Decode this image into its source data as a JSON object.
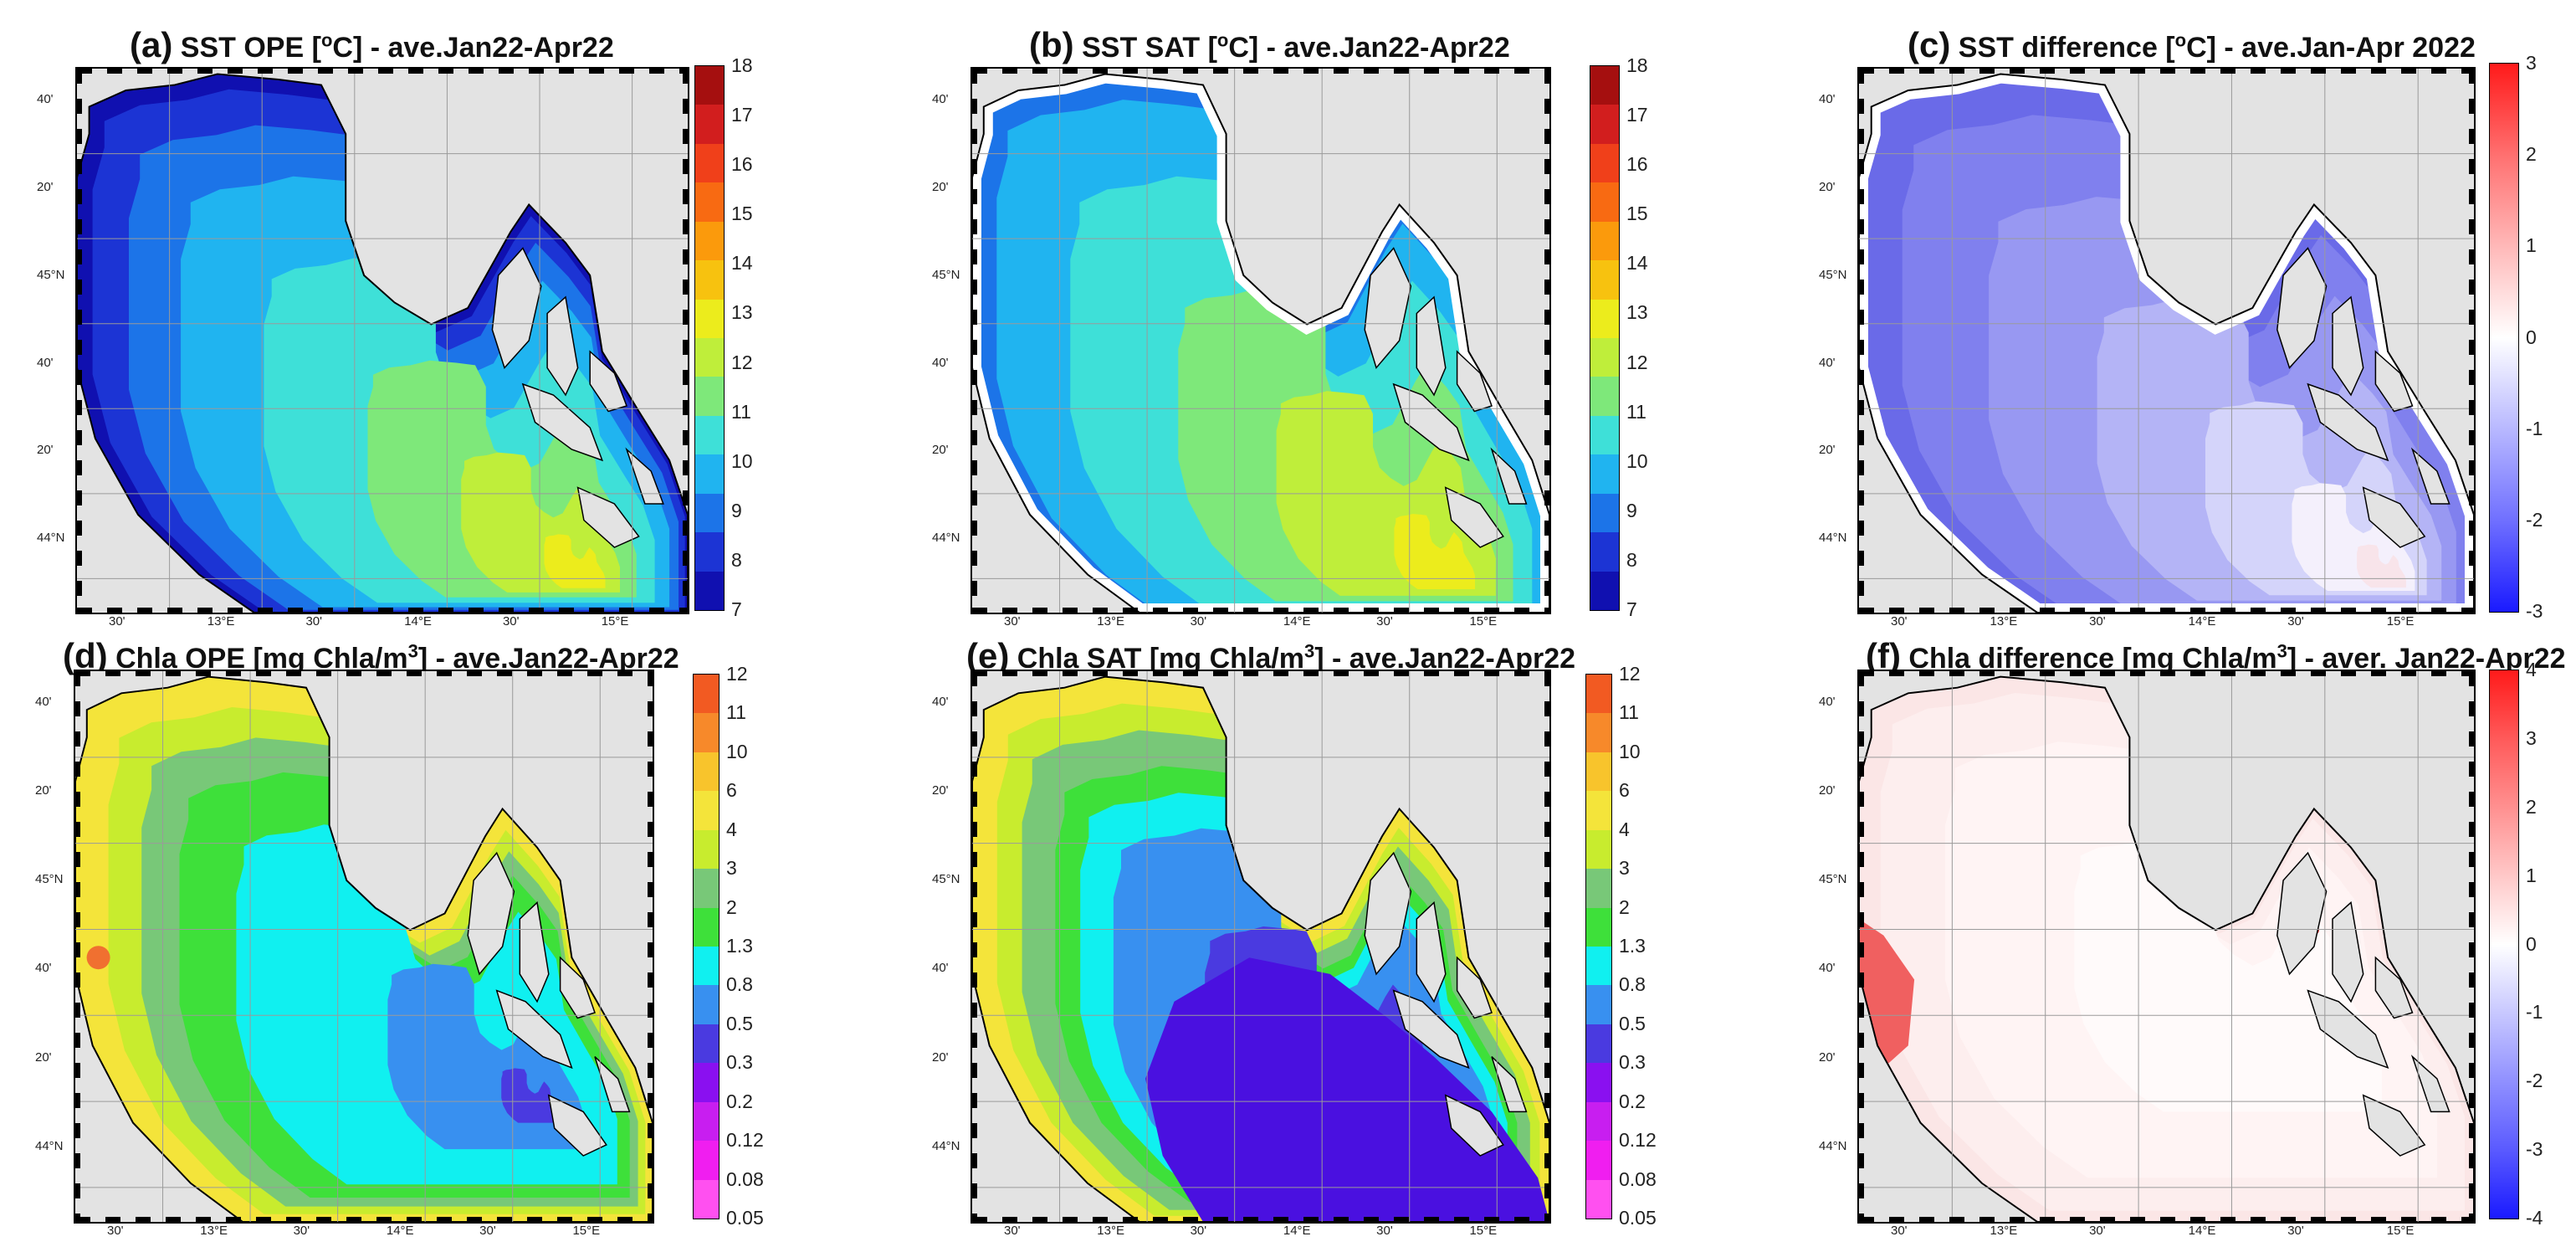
{
  "panels": [
    {
      "id": "a",
      "letter": "(a)",
      "title_pre": "SST OPE [",
      "title_sup": "o",
      "title_post": "C] - ave.Jan22-Apr22",
      "kind": "sst",
      "colorbar": {
        "labels": [
          "18",
          "17",
          "16",
          "15",
          "14",
          "13",
          "12",
          "11",
          "10",
          "9",
          "8",
          "7"
        ],
        "colors": [
          "#a50f0f",
          "#d21e1e",
          "#f0401a",
          "#f86a12",
          "#fb9a0c",
          "#f7c20f",
          "#ecec1c",
          "#bfee3a",
          "#7ee87a",
          "#3ee0d8",
          "#20b4f0",
          "#1c74e8",
          "#1c34d4",
          "#1010b0"
        ]
      }
    },
    {
      "id": "b",
      "letter": "(b)",
      "title_pre": "SST SAT [",
      "title_sup": "o",
      "title_post": "C] - ave.Jan22-Apr22",
      "kind": "sst-sat",
      "colorbar": {
        "labels": [
          "18",
          "17",
          "16",
          "15",
          "14",
          "13",
          "12",
          "11",
          "10",
          "9",
          "8",
          "7"
        ],
        "colors": [
          "#a50f0f",
          "#d21e1e",
          "#f0401a",
          "#f86a12",
          "#fb9a0c",
          "#f7c20f",
          "#ecec1c",
          "#bfee3a",
          "#7ee87a",
          "#3ee0d8",
          "#20b4f0",
          "#1c74e8",
          "#1c34d4",
          "#1010b0"
        ]
      }
    },
    {
      "id": "c",
      "letter": "(c)",
      "title_pre": "SST difference [",
      "title_sup": "o",
      "title_post": "C] - ave.Jan-Apr 2022",
      "kind": "sstdiff",
      "colorbar": {
        "labels": [
          "3",
          "2",
          "1",
          "0",
          "-1",
          "-2",
          "-3"
        ],
        "colors": [
          "#ff1a1a",
          "#ff7070",
          "#ffb8b8",
          "#ffffff",
          "#b8b8ff",
          "#7070ff",
          "#1a1aff"
        ]
      }
    },
    {
      "id": "d",
      "letter": "(d)",
      "title_pre": "Chla OPE [mg Chla/m",
      "title_sup": "3",
      "title_post": "] - ave.Jan22-Apr22",
      "kind": "chla",
      "colorbar": {
        "labels": [
          "12",
          "11",
          "10",
          "6",
          "4",
          "3",
          "2",
          "1.3",
          "0.8",
          "0.5",
          "0.3",
          "0.2",
          "0.12",
          "0.08",
          "0.05"
        ],
        "colors": [
          "#f25a22",
          "#f7892a",
          "#f8c42c",
          "#f4e43a",
          "#c8ec2e",
          "#78c878",
          "#3ee03a",
          "#10f0f0",
          "#3890f0",
          "#4a3ae0",
          "#8a10f0",
          "#c81ef0",
          "#f01ef0",
          "#ff50f0"
        ]
      }
    },
    {
      "id": "e",
      "letter": "(e)",
      "title_pre": "Chla SAT [mg Chla/m",
      "title_sup": "3",
      "title_post": "] - ave.Jan22-Apr22",
      "kind": "chla-sat",
      "colorbar": {
        "labels": [
          "12",
          "11",
          "10",
          "6",
          "4",
          "3",
          "2",
          "1.3",
          "0.8",
          "0.5",
          "0.3",
          "0.2",
          "0.12",
          "0.08",
          "0.05"
        ],
        "colors": [
          "#f25a22",
          "#f7892a",
          "#f8c42c",
          "#f4e43a",
          "#c8ec2e",
          "#78c878",
          "#3ee03a",
          "#10f0f0",
          "#3890f0",
          "#4a3ae0",
          "#8a10f0",
          "#c81ef0",
          "#f01ef0",
          "#ff50f0"
        ]
      }
    },
    {
      "id": "f",
      "letter": "(f)",
      "title_pre": "Chla difference [mg Chla/m",
      "title_sup": "3",
      "title_post": "] - aver. Jan22-Apr22",
      "kind": "chladiff",
      "colorbar": {
        "labels": [
          "4",
          "3",
          "2",
          "1",
          "0",
          "-1",
          "-2",
          "-3",
          "-4"
        ],
        "colors": [
          "#ff1a1a",
          "#ff5a5a",
          "#ff9090",
          "#ffc8c8",
          "#ffffff",
          "#c8c8ff",
          "#9090ff",
          "#5a5aff",
          "#1a1aff"
        ]
      }
    }
  ],
  "axes": {
    "y_top": [
      "40'",
      "20'",
      "45°N",
      "40'",
      "20'",
      "44°N"
    ],
    "x_top": [
      "30'",
      "13°E",
      "30'",
      "14°E",
      "30'",
      "15°E"
    ],
    "y_bottom": [
      "40'",
      "20'",
      "45°N",
      "40'",
      "20'",
      "44°N"
    ],
    "x_bottom": [
      "30'",
      "13°E",
      "30'",
      "14°E",
      "30'",
      "15°E"
    ]
  },
  "colors": {
    "land": "#e3e3e3",
    "coast": "#000000"
  }
}
